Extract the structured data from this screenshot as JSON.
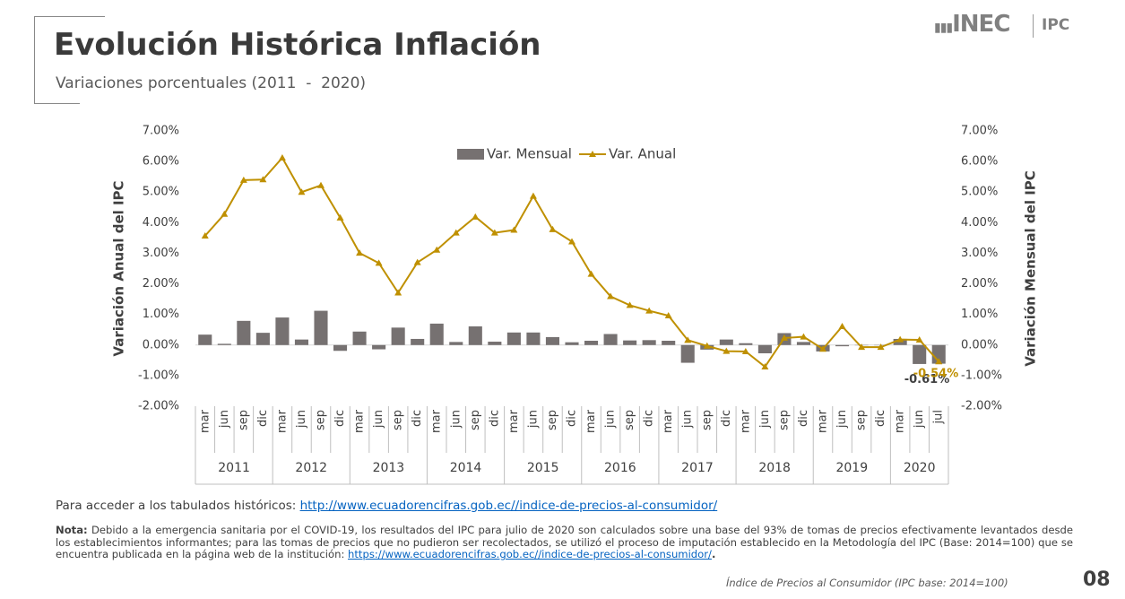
{
  "header": {
    "title": "Evolución Histórica Inflación",
    "subtitle": "Variaciones porcentuales (2011  -  2020)",
    "logo": "INEC",
    "logo_tag": "IPC"
  },
  "chart_data": {
    "type": "bar",
    "categories": [
      "mar",
      "jun",
      "sep",
      "dic",
      "mar",
      "jun",
      "sep",
      "dic",
      "mar",
      "jun",
      "sep",
      "dic",
      "mar",
      "jun",
      "sep",
      "dic",
      "mar",
      "jun",
      "sep",
      "dic",
      "mar",
      "jun",
      "sep",
      "dic",
      "mar",
      "jun",
      "sep",
      "dic",
      "mar",
      "jun",
      "sep",
      "dic",
      "mar",
      "jun",
      "sep",
      "dic",
      "mar",
      "jun",
      "jul"
    ],
    "x_groups": [
      "2011",
      "2012",
      "2013",
      "2014",
      "2015",
      "2016",
      "2017",
      "2018",
      "2019",
      "2020"
    ],
    "series": [
      {
        "name": "Var. Mensual",
        "type": "bar",
        "axis": "y2",
        "color": "#767171",
        "values": [
          0.34,
          0.04,
          0.79,
          0.4,
          0.9,
          0.18,
          1.12,
          -0.19,
          0.44,
          -0.14,
          0.57,
          0.2,
          0.7,
          0.1,
          0.61,
          0.11,
          0.41,
          0.41,
          0.26,
          0.09,
          0.14,
          0.36,
          0.15,
          0.16,
          0.14,
          -0.58,
          -0.15,
          0.18,
          0.06,
          -0.27,
          0.39,
          0.1,
          -0.21,
          -0.04,
          -0.01,
          -0.01,
          0.2,
          -0.62,
          -0.61
        ],
        "value_labels": [
          null,
          null,
          null,
          null,
          null,
          null,
          null,
          null,
          null,
          null,
          null,
          null,
          null,
          null,
          null,
          null,
          null,
          null,
          null,
          null,
          null,
          null,
          null,
          null,
          null,
          null,
          null,
          null,
          null,
          null,
          null,
          null,
          null,
          null,
          null,
          null,
          null,
          null,
          "-0.61%"
        ]
      },
      {
        "name": "Var. Anual",
        "type": "line",
        "color": "#bf9000",
        "values": [
          3.57,
          4.28,
          5.39,
          5.41,
          6.12,
          5.0,
          5.22,
          4.16,
          3.01,
          2.68,
          1.71,
          2.7,
          3.11,
          3.67,
          4.19,
          3.67,
          3.76,
          4.87,
          3.78,
          3.38,
          2.32,
          1.59,
          1.3,
          1.12,
          0.96,
          0.16,
          -0.03,
          -0.2,
          -0.21,
          -0.71,
          0.23,
          0.27,
          -0.13,
          0.61,
          -0.07,
          -0.07,
          0.18,
          0.17,
          -0.54
        ],
        "value_labels": [
          null,
          null,
          null,
          null,
          null,
          null,
          null,
          null,
          null,
          null,
          null,
          null,
          null,
          null,
          null,
          null,
          null,
          null,
          null,
          null,
          null,
          null,
          null,
          null,
          null,
          null,
          null,
          null,
          null,
          null,
          null,
          null,
          null,
          null,
          null,
          null,
          null,
          null,
          "-0.54%"
        ]
      }
    ],
    "ylabel": "Variación Anual del IPC",
    "y2label": "Variación Mensual del IPC",
    "ylim": [
      -2,
      7
    ],
    "yticks": [
      {
        "value": -2,
        "label": "-2.00%"
      },
      {
        "value": -1,
        "label": "-1.00%"
      },
      {
        "value": 0,
        "label": "0.00%"
      },
      {
        "value": 1,
        "label": "1.00%"
      },
      {
        "value": 2,
        "label": "2.00%"
      },
      {
        "value": 3,
        "label": "3.00%"
      },
      {
        "value": 4,
        "label": "4.00%"
      },
      {
        "value": 5,
        "label": "5.00%"
      },
      {
        "value": 6,
        "label": "6.00%"
      },
      {
        "value": 7,
        "label": "7.00%"
      }
    ],
    "y2lim": [
      -2,
      7
    ],
    "y2ticks": [
      {
        "value": -2,
        "label": "-2.00%"
      },
      {
        "value": -1,
        "label": "-1.00%"
      },
      {
        "value": 0,
        "label": "0.00%"
      },
      {
        "value": 1,
        "label": "1.00%"
      },
      {
        "value": 2,
        "label": "2.00%"
      },
      {
        "value": 3,
        "label": "3.00%"
      },
      {
        "value": 4,
        "label": "4.00%"
      },
      {
        "value": 5,
        "label": "5.00%"
      },
      {
        "value": 6,
        "label": "6.00%"
      },
      {
        "value": 7,
        "label": "7.00%"
      }
    ],
    "legend": "top",
    "grid": false
  },
  "links": {
    "prefix": "Para acceder a los tabulados históricos: ",
    "url": "http://www.ecuadorencifras.gob.ec//indice-de-precios-al-consumidor/"
  },
  "note": {
    "label": "Nota:",
    "text": " Debido a la emergencia sanitaria por el COVID-19, los resultados del IPC para julio de 2020 son calculados sobre una base del 93% de tomas de precios efectivamente levantados desde los establecimientos informantes; para las tomas de precios que no pudieron ser recolectados, se utilizó el proceso de imputación establecido en la Metodología del IPC (Base: 2014=100) que se encuentra publicada en la página web de la institución: ",
    "url": "https://www.ecuadorencifras.gob.ec//indice-de-precios-al-consumidor/",
    "end": "."
  },
  "footer": {
    "text": "Índice de Precios al Consumidor (IPC base: 2014=100)",
    "page": "08"
  }
}
